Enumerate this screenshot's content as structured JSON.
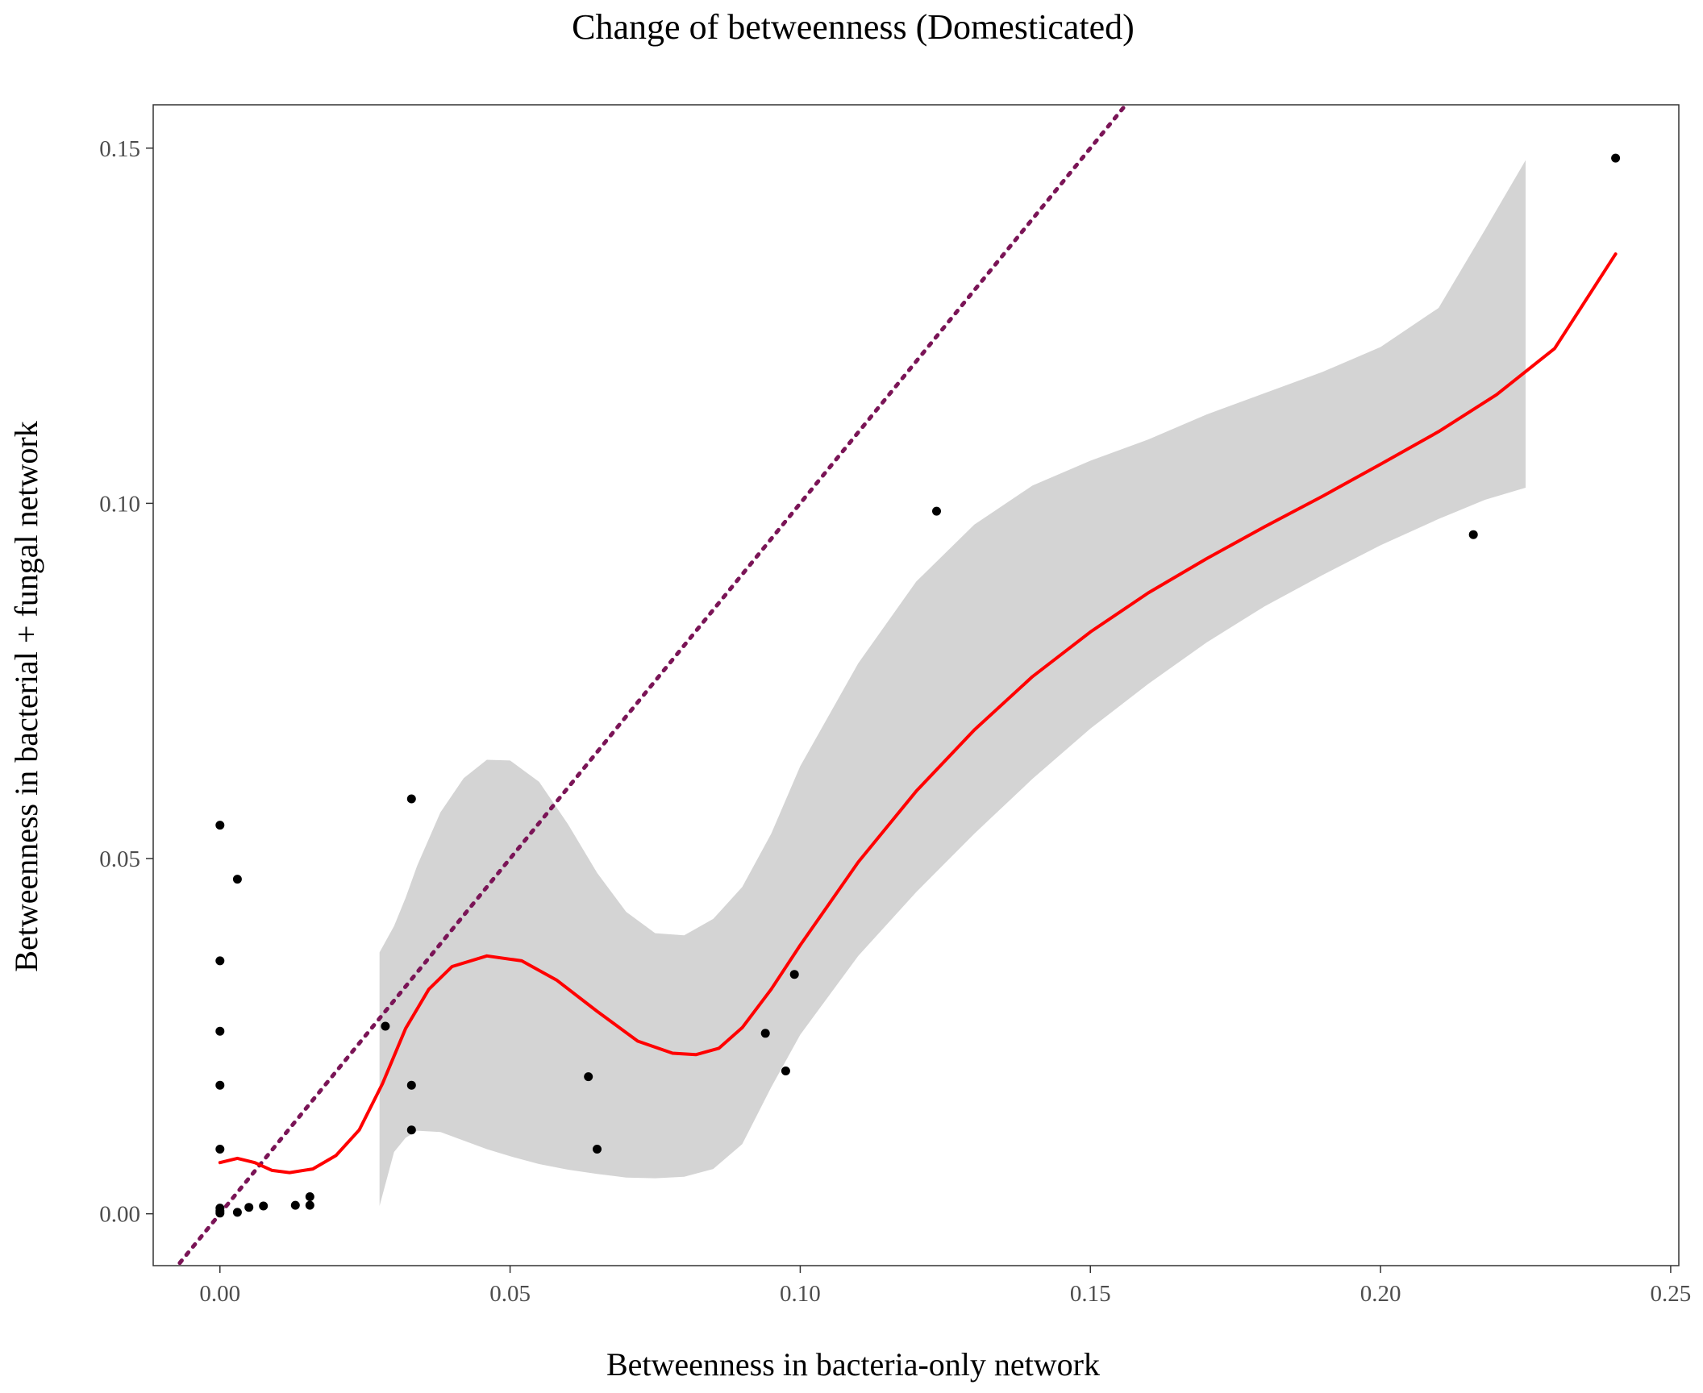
{
  "chart_data": {
    "type": "scatter",
    "title": "Change of betweenness (Domesticated)",
    "xlabel": "Betweenness in bacteria-only network",
    "ylabel": "Betweenness in bacterial + fungal network",
    "xlim": [
      -0.0115,
      0.2514
    ],
    "ylim": [
      -0.0073,
      0.1561
    ],
    "x_ticks": [
      0.0,
      0.05,
      0.1,
      0.15,
      0.2,
      0.25
    ],
    "x_tick_labels": [
      "0.00",
      "0.05",
      "0.10",
      "0.15",
      "0.20",
      "0.25"
    ],
    "y_ticks": [
      0.0,
      0.05,
      0.1,
      0.15
    ],
    "y_tick_labels": [
      "0.00",
      "0.05",
      "0.10",
      "0.15"
    ],
    "grid": false,
    "legend": "none",
    "colors": {
      "points": "#000000",
      "smooth_line": "#ff0000",
      "confidence_band": "#d4d4d4",
      "reference_line": "#7a1456"
    },
    "points": [
      {
        "x": 0.0,
        "y": 0.0547
      },
      {
        "x": 0.0,
        "y": 0.0356
      },
      {
        "x": 0.0,
        "y": 0.0257
      },
      {
        "x": 0.0,
        "y": 0.0181
      },
      {
        "x": 0.0,
        "y": 0.0091
      },
      {
        "x": 0.0,
        "y": 0.0008
      },
      {
        "x": 0.0,
        "y": 0.0004
      },
      {
        "x": 0.0,
        "y": 0.0001
      },
      {
        "x": 0.003,
        "y": 0.0471
      },
      {
        "x": 0.003,
        "y": 0.0002
      },
      {
        "x": 0.005,
        "y": 0.0009
      },
      {
        "x": 0.0075,
        "y": 0.0011
      },
      {
        "x": 0.013,
        "y": 0.0012
      },
      {
        "x": 0.0155,
        "y": 0.0024
      },
      {
        "x": 0.0155,
        "y": 0.0012
      },
      {
        "x": 0.0285,
        "y": 0.0264
      },
      {
        "x": 0.033,
        "y": 0.0584
      },
      {
        "x": 0.033,
        "y": 0.0181
      },
      {
        "x": 0.033,
        "y": 0.0118
      },
      {
        "x": 0.0635,
        "y": 0.0193
      },
      {
        "x": 0.065,
        "y": 0.0091
      },
      {
        "x": 0.094,
        "y": 0.0254
      },
      {
        "x": 0.0975,
        "y": 0.0201
      },
      {
        "x": 0.099,
        "y": 0.0337
      },
      {
        "x": 0.1235,
        "y": 0.0989
      },
      {
        "x": 0.216,
        "y": 0.0956
      },
      {
        "x": 0.2405,
        "y": 0.1486
      }
    ],
    "smooth": [
      {
        "x": 0.0,
        "y": 0.0072
      },
      {
        "x": 0.003,
        "y": 0.0078
      },
      {
        "x": 0.006,
        "y": 0.0072
      },
      {
        "x": 0.009,
        "y": 0.0061
      },
      {
        "x": 0.012,
        "y": 0.0058
      },
      {
        "x": 0.016,
        "y": 0.0063
      },
      {
        "x": 0.02,
        "y": 0.0082
      },
      {
        "x": 0.024,
        "y": 0.0118
      },
      {
        "x": 0.028,
        "y": 0.0183
      },
      {
        "x": 0.032,
        "y": 0.0261
      },
      {
        "x": 0.036,
        "y": 0.0316
      },
      {
        "x": 0.04,
        "y": 0.0348
      },
      {
        "x": 0.046,
        "y": 0.0363
      },
      {
        "x": 0.052,
        "y": 0.0356
      },
      {
        "x": 0.058,
        "y": 0.0329
      },
      {
        "x": 0.065,
        "y": 0.0285
      },
      {
        "x": 0.072,
        "y": 0.0243
      },
      {
        "x": 0.078,
        "y": 0.0226
      },
      {
        "x": 0.082,
        "y": 0.0224
      },
      {
        "x": 0.086,
        "y": 0.0233
      },
      {
        "x": 0.09,
        "y": 0.0262
      },
      {
        "x": 0.095,
        "y": 0.0316
      },
      {
        "x": 0.1,
        "y": 0.0378
      },
      {
        "x": 0.11,
        "y": 0.0495
      },
      {
        "x": 0.12,
        "y": 0.0595
      },
      {
        "x": 0.13,
        "y": 0.0681
      },
      {
        "x": 0.14,
        "y": 0.0756
      },
      {
        "x": 0.15,
        "y": 0.0819
      },
      {
        "x": 0.16,
        "y": 0.0874
      },
      {
        "x": 0.17,
        "y": 0.0922
      },
      {
        "x": 0.18,
        "y": 0.0967
      },
      {
        "x": 0.19,
        "y": 0.101
      },
      {
        "x": 0.2,
        "y": 0.1055
      },
      {
        "x": 0.21,
        "y": 0.1101
      },
      {
        "x": 0.22,
        "y": 0.1153
      },
      {
        "x": 0.23,
        "y": 0.1218
      },
      {
        "x": 0.2405,
        "y": 0.1351
      }
    ],
    "band": [
      {
        "x": 0.0275,
        "lo": 0.0011,
        "hi": 0.0368
      },
      {
        "x": 0.03,
        "lo": 0.0087,
        "hi": 0.0405
      },
      {
        "x": 0.032,
        "lo": 0.0107,
        "hi": 0.0445
      },
      {
        "x": 0.034,
        "lo": 0.0117,
        "hi": 0.049
      },
      {
        "x": 0.038,
        "lo": 0.0115,
        "hi": 0.0565
      },
      {
        "x": 0.042,
        "lo": 0.0103,
        "hi": 0.0613
      },
      {
        "x": 0.046,
        "lo": 0.0091,
        "hi": 0.0639
      },
      {
        "x": 0.05,
        "lo": 0.0081,
        "hi": 0.0638
      },
      {
        "x": 0.055,
        "lo": 0.007,
        "hi": 0.0608
      },
      {
        "x": 0.06,
        "lo": 0.0062,
        "hi": 0.0548
      },
      {
        "x": 0.065,
        "lo": 0.0056,
        "hi": 0.048
      },
      {
        "x": 0.07,
        "lo": 0.0051,
        "hi": 0.0425
      },
      {
        "x": 0.075,
        "lo": 0.005,
        "hi": 0.0395
      },
      {
        "x": 0.08,
        "lo": 0.0052,
        "hi": 0.0392
      },
      {
        "x": 0.085,
        "lo": 0.0063,
        "hi": 0.0415
      },
      {
        "x": 0.09,
        "lo": 0.0098,
        "hi": 0.046
      },
      {
        "x": 0.095,
        "lo": 0.0178,
        "hi": 0.0535
      },
      {
        "x": 0.1,
        "lo": 0.0252,
        "hi": 0.063
      },
      {
        "x": 0.11,
        "lo": 0.0363,
        "hi": 0.0775
      },
      {
        "x": 0.12,
        "lo": 0.0453,
        "hi": 0.089
      },
      {
        "x": 0.13,
        "lo": 0.0535,
        "hi": 0.097
      },
      {
        "x": 0.14,
        "lo": 0.0612,
        "hi": 0.1025
      },
      {
        "x": 0.15,
        "lo": 0.0683,
        "hi": 0.106
      },
      {
        "x": 0.16,
        "lo": 0.0746,
        "hi": 0.109
      },
      {
        "x": 0.17,
        "lo": 0.0804,
        "hi": 0.1125
      },
      {
        "x": 0.18,
        "lo": 0.0855,
        "hi": 0.1155
      },
      {
        "x": 0.19,
        "lo": 0.0899,
        "hi": 0.1185
      },
      {
        "x": 0.2,
        "lo": 0.0941,
        "hi": 0.122
      },
      {
        "x": 0.21,
        "lo": 0.0978,
        "hi": 0.1275
      },
      {
        "x": 0.218,
        "lo": 0.1005,
        "hi": 0.1385
      },
      {
        "x": 0.225,
        "lo": 0.1022,
        "hi": 0.1483
      }
    ],
    "reference_line": {
      "type": "identity",
      "slope": 1,
      "intercept": 0
    }
  }
}
